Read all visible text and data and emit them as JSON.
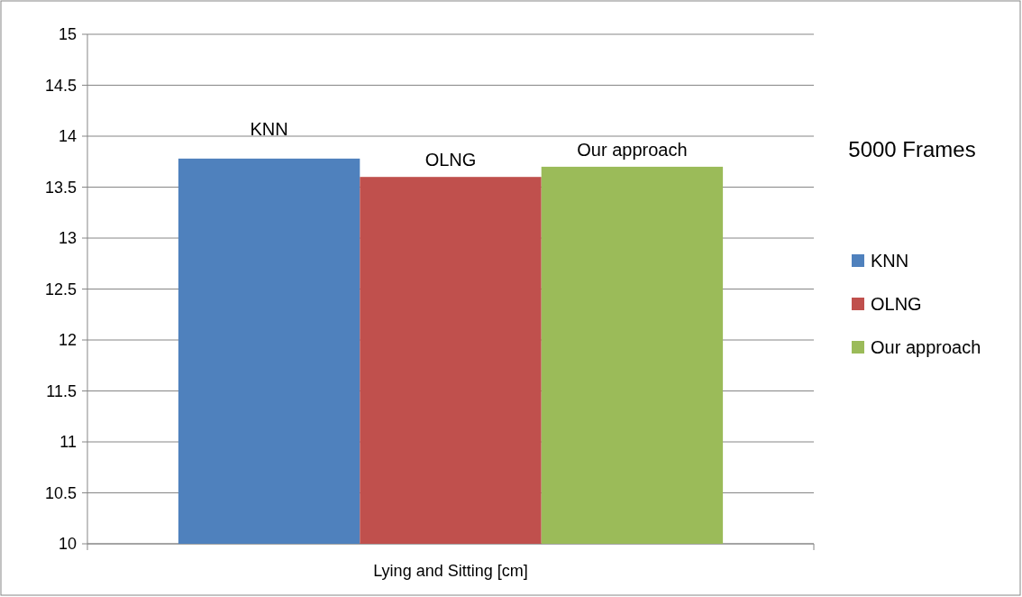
{
  "chart_data": {
    "type": "bar",
    "categories": [
      "Lying and Sitting [cm]"
    ],
    "series": [
      {
        "name": "KNN",
        "color": "#4f81bd",
        "values": [
          13.78
        ]
      },
      {
        "name": "OLNG",
        "color": "#c0504d",
        "values": [
          13.6
        ]
      },
      {
        "name": "Our approach",
        "color": "#9bbb59",
        "values": [
          13.7
        ]
      }
    ],
    "ylim": [
      10,
      15
    ],
    "yticks": [
      10,
      10.5,
      11,
      11.5,
      12,
      12.5,
      13,
      13.5,
      14,
      14.5,
      15
    ],
    "grid": "y",
    "legend": "right",
    "annotations": [
      "5000 Frames"
    ]
  }
}
